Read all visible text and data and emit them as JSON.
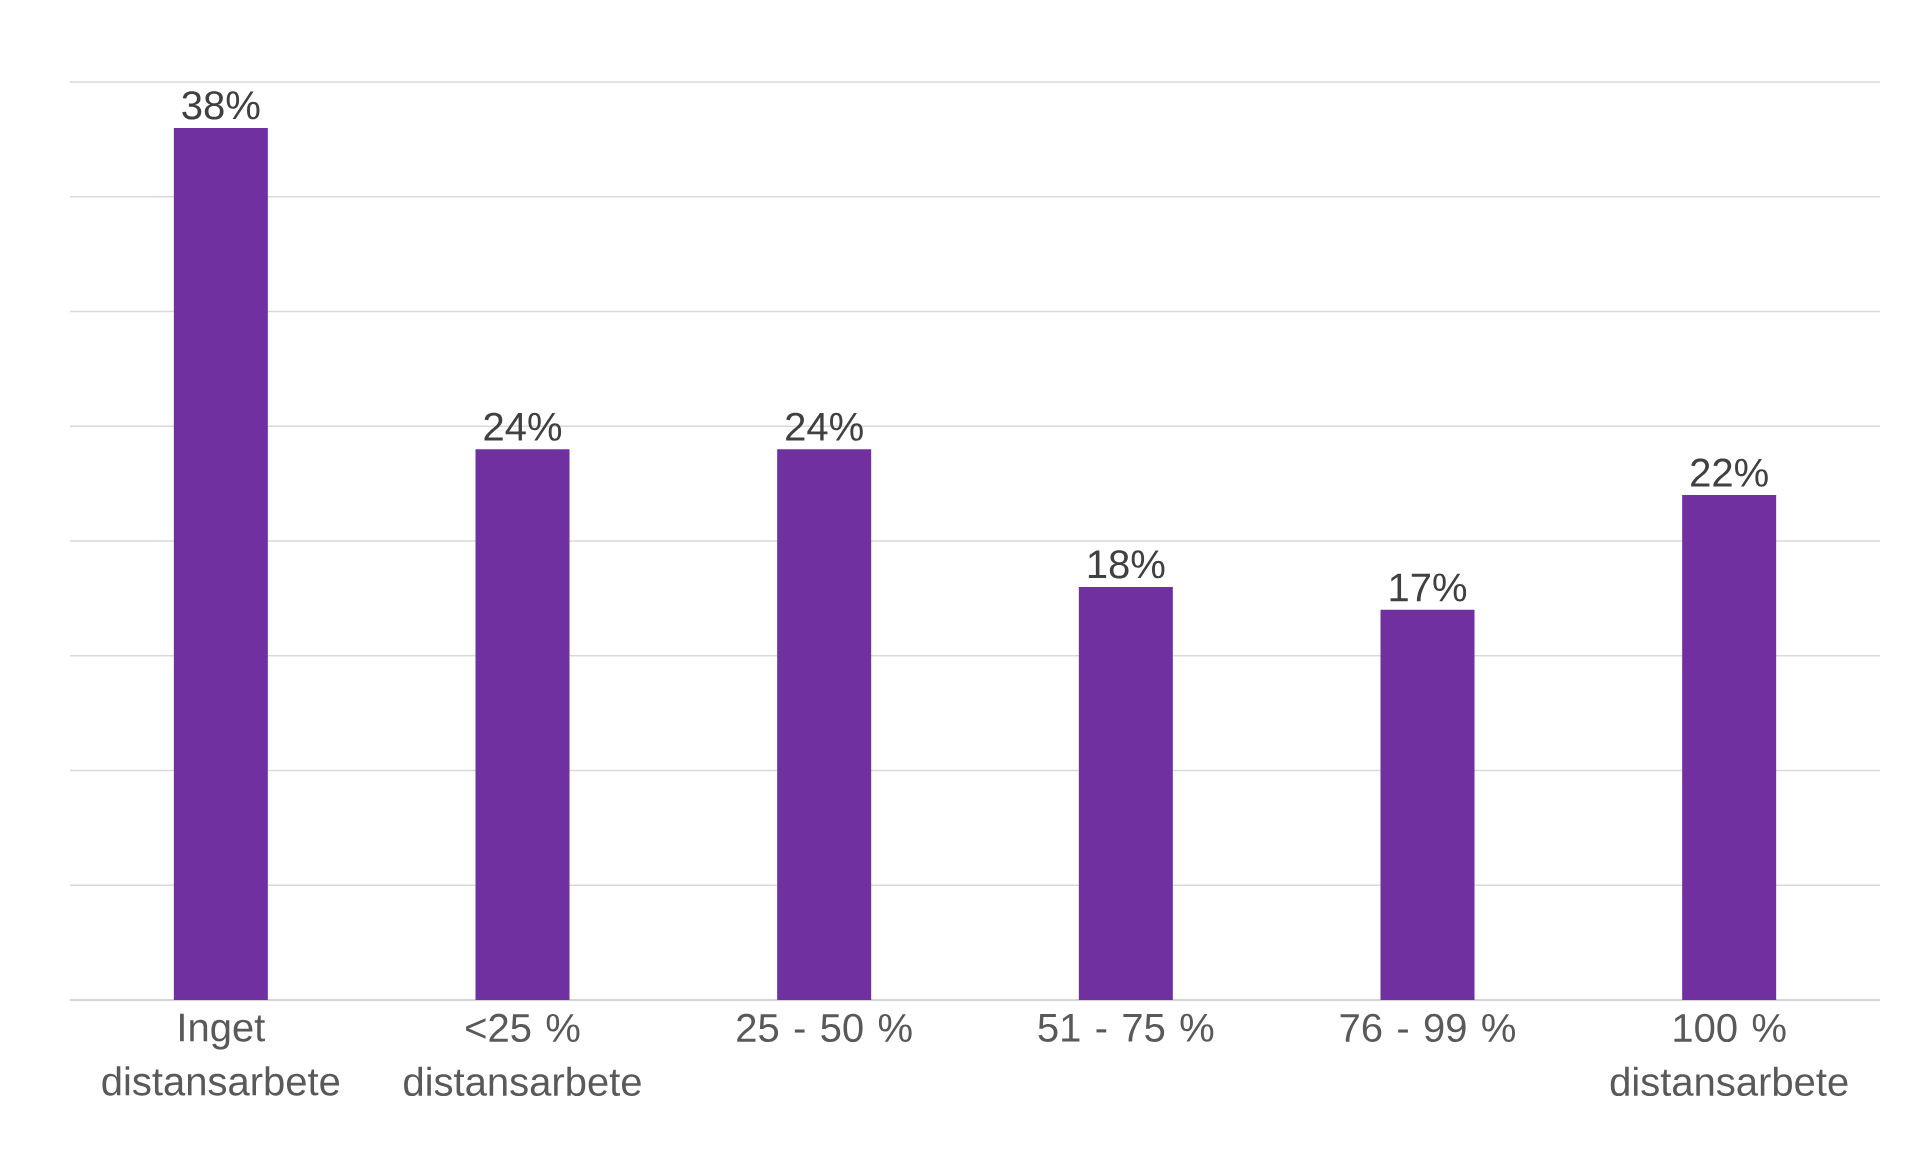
{
  "chart_data": {
    "type": "bar",
    "categories": [
      "Inget distansarbete",
      "<25 % distansarbete",
      "25 - 50 %",
      "51 - 75 %",
      "76 - 99 %",
      "100 % distansarbete"
    ],
    "values": [
      38,
      24,
      24,
      18,
      17,
      22
    ],
    "value_labels": [
      "38%",
      "24%",
      "24%",
      "18%",
      "17%",
      "22%"
    ],
    "color": "#7030a0",
    "ylim": [
      0,
      40
    ],
    "yticks": [
      {
        "value": 0,
        "label": null
      },
      {
        "value": 5,
        "label": null
      },
      {
        "value": 10,
        "label": null
      },
      {
        "value": 15,
        "label": null
      },
      {
        "value": 20,
        "label": null
      },
      {
        "value": 25,
        "label": null
      },
      {
        "value": 30,
        "label": null
      },
      {
        "value": 35,
        "label": null
      },
      {
        "value": 40,
        "label": null
      }
    ],
    "tick_labels": "x",
    "grid": "y"
  }
}
